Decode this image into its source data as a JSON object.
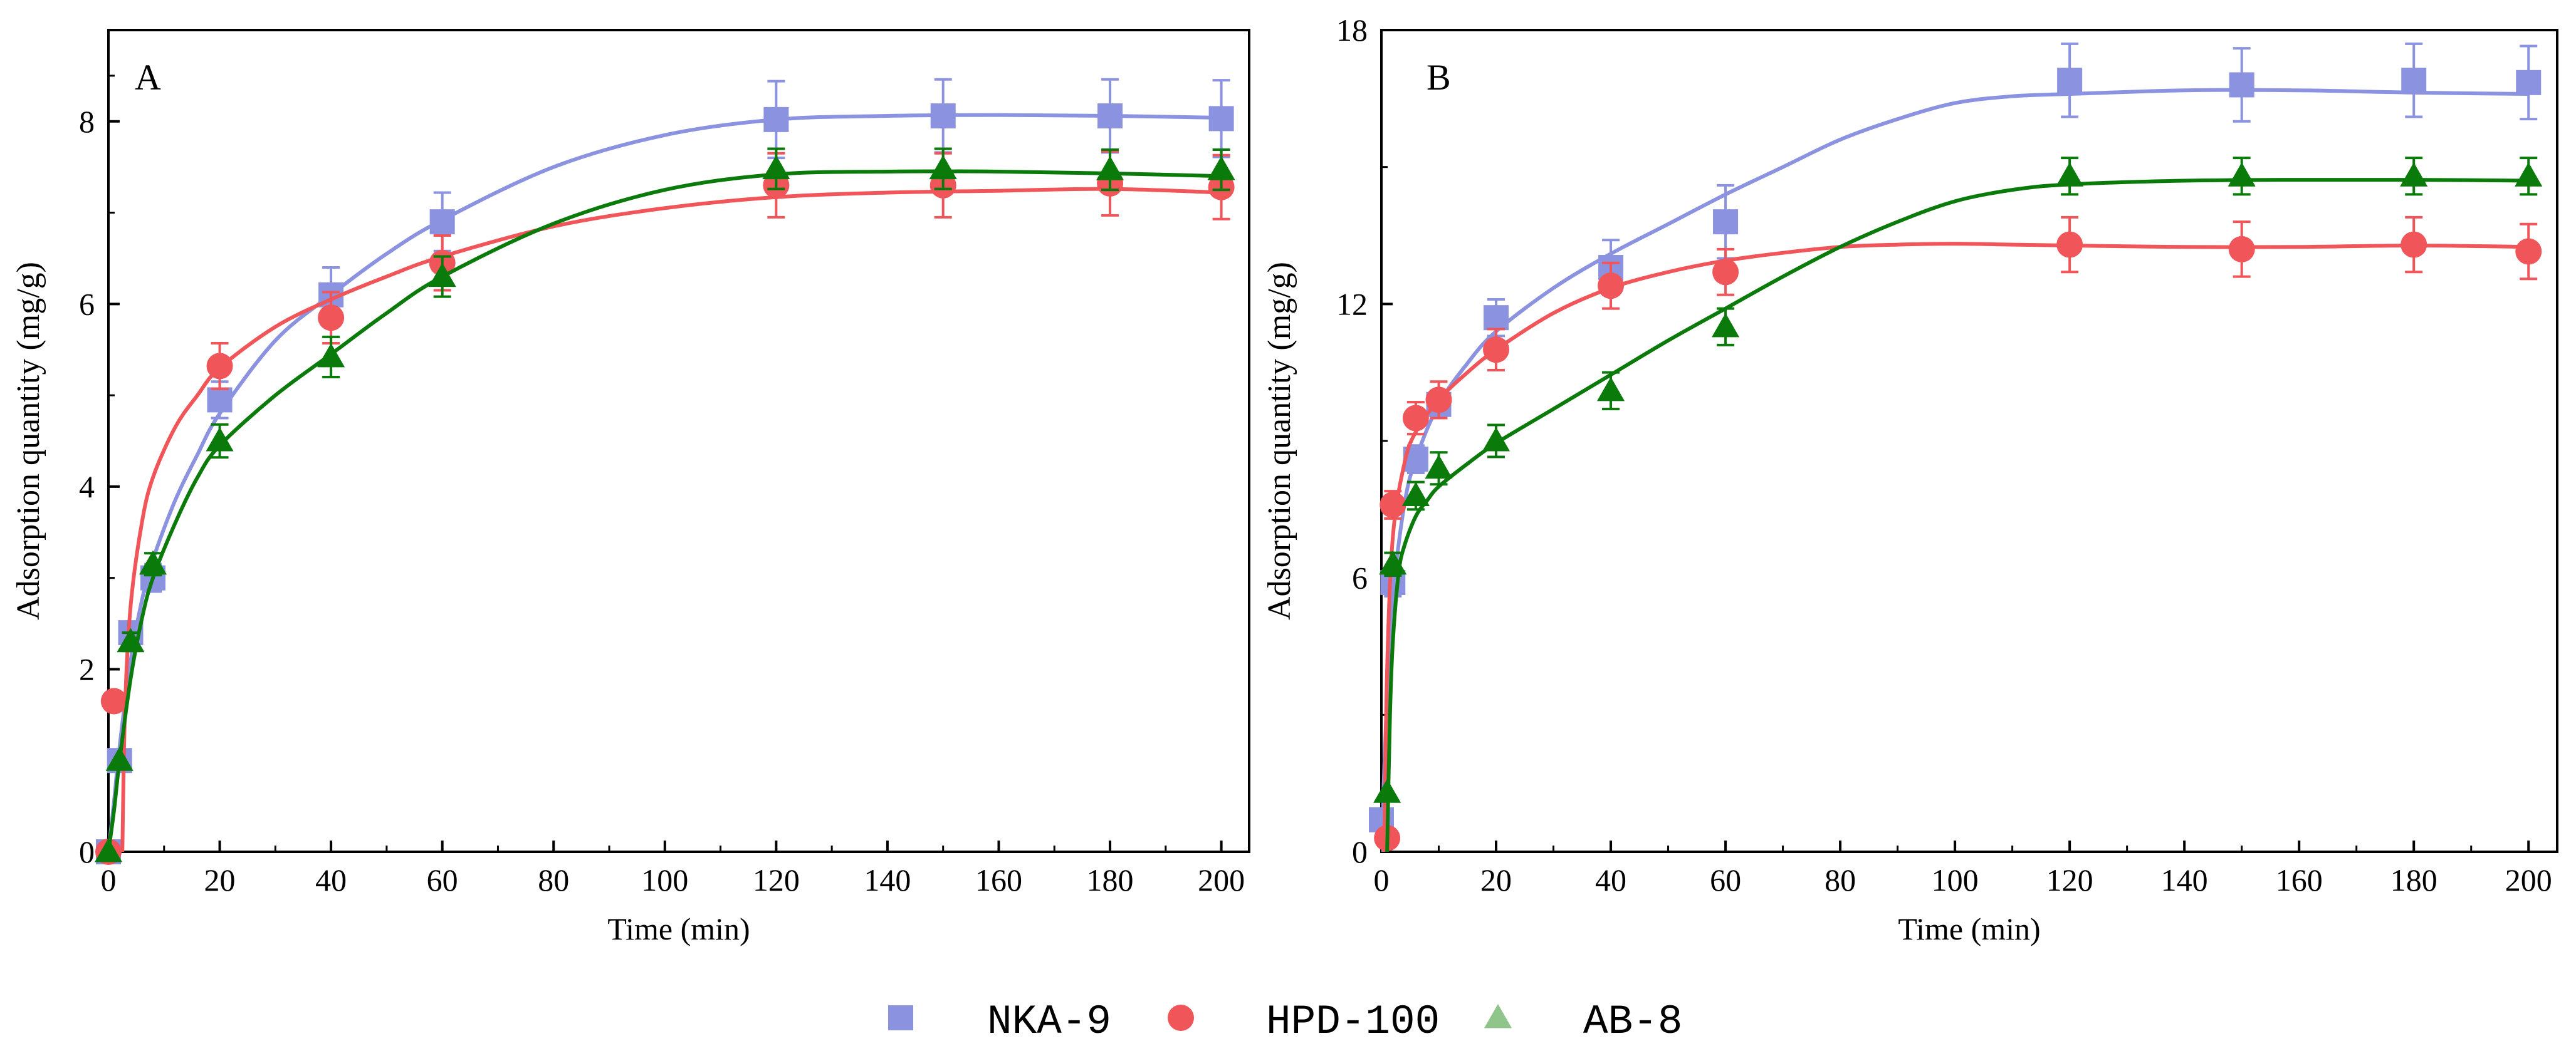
{
  "chart_data": [
    {
      "type": "scatter",
      "panel_label": "A",
      "xlabel": "Time (min)",
      "ylabel": "Adsorption quantity (mg/g)",
      "xlim": [
        0,
        205
      ],
      "ylim": [
        0,
        9
      ],
      "xticks": [
        0,
        20,
        40,
        60,
        80,
        100,
        120,
        140,
        160,
        180,
        200
      ],
      "yticks": [
        0,
        2,
        4,
        6,
        8
      ],
      "series": [
        {
          "name": "NKA-9",
          "color": "#8b93e0",
          "marker": "square",
          "x": [
            0,
            2,
            4,
            8,
            20,
            40,
            60,
            120,
            150,
            180,
            200
          ],
          "y": [
            0,
            1.0,
            2.4,
            3.0,
            4.95,
            6.1,
            6.9,
            8.02,
            8.06,
            8.06,
            8.03
          ],
          "err": [
            0,
            0,
            0.12,
            0.15,
            0.2,
            0.3,
            0.32,
            0.42,
            0.4,
            0.4,
            0.42
          ],
          "fit_x": [
            0,
            1,
            2,
            4,
            6,
            8,
            12,
            16,
            20,
            30,
            40,
            50,
            60,
            80,
            100,
            120,
            140,
            160,
            180,
            200
          ],
          "fit_y": [
            0,
            0.55,
            1.15,
            2.1,
            2.75,
            3.2,
            3.85,
            4.35,
            4.8,
            5.6,
            6.1,
            6.55,
            6.92,
            7.5,
            7.85,
            8.02,
            8.06,
            8.07,
            8.06,
            8.04
          ]
        },
        {
          "name": "HPD-100",
          "color": "#f0555a",
          "marker": "circle",
          "x": [
            0,
            1,
            20,
            40,
            60,
            120,
            150,
            180,
            200
          ],
          "y": [
            0,
            1.65,
            5.32,
            5.85,
            6.45,
            7.3,
            7.3,
            7.32,
            7.28
          ],
          "err": [
            0,
            0,
            0.25,
            0.28,
            0.3,
            0.35,
            0.35,
            0.35,
            0.35
          ],
          "fit_x": [
            2.5,
            3,
            4,
            6,
            8,
            12,
            16,
            20,
            30,
            40,
            50,
            60,
            80,
            100,
            120,
            140,
            160,
            180,
            200
          ],
          "fit_y": [
            0,
            1.6,
            2.7,
            3.6,
            4.1,
            4.65,
            5.0,
            5.3,
            5.75,
            6.05,
            6.3,
            6.52,
            6.85,
            7.05,
            7.17,
            7.22,
            7.24,
            7.26,
            7.22
          ]
        },
        {
          "name": "AB-8",
          "color": "#0a7a0a",
          "legend_color": "#8fc48a",
          "marker": "triangle",
          "x": [
            0,
            2,
            4,
            8,
            20,
            40,
            60,
            120,
            150,
            180,
            200
          ],
          "y": [
            0,
            1.0,
            2.3,
            3.15,
            4.5,
            5.42,
            6.3,
            7.48,
            7.48,
            7.47,
            7.47
          ],
          "err": [
            0,
            0,
            0.1,
            0.12,
            0.18,
            0.22,
            0.22,
            0.22,
            0.22,
            0.22,
            0.22
          ],
          "fit_x": [
            0,
            1,
            2,
            4,
            6,
            8,
            12,
            16,
            20,
            30,
            40,
            50,
            60,
            80,
            100,
            120,
            140,
            160,
            180,
            200
          ],
          "fit_y": [
            0,
            0.45,
            1.0,
            1.9,
            2.55,
            3.0,
            3.6,
            4.1,
            4.45,
            5.0,
            5.45,
            5.9,
            6.3,
            6.88,
            7.25,
            7.42,
            7.45,
            7.45,
            7.43,
            7.4
          ]
        }
      ]
    },
    {
      "type": "scatter",
      "panel_label": "B",
      "xlabel": "Time (min)",
      "ylabel": "Adsorption quantity (mg/g)",
      "xlim": [
        0,
        205
      ],
      "ylim": [
        0,
        18
      ],
      "xticks": [
        0,
        20,
        40,
        60,
        80,
        100,
        120,
        140,
        160,
        180,
        200
      ],
      "yticks": [
        0,
        6,
        12,
        18
      ],
      "series": [
        {
          "name": "NKA-9",
          "color": "#8b93e0",
          "marker": "square",
          "x": [
            0,
            2,
            6,
            10,
            20,
            40,
            60,
            120,
            150,
            180,
            200
          ],
          "y": [
            0.7,
            5.9,
            8.6,
            9.8,
            11.7,
            12.8,
            13.8,
            16.9,
            16.8,
            16.9,
            16.85
          ],
          "err": [
            0,
            0.3,
            0.3,
            0.3,
            0.4,
            0.6,
            0.8,
            0.8,
            0.8,
            0.8,
            0.8
          ],
          "fit_x": [
            0,
            1,
            2,
            4,
            6,
            10,
            15,
            20,
            30,
            40,
            50,
            60,
            70,
            80,
            90,
            100,
            110,
            120,
            140,
            160,
            180,
            200
          ],
          "fit_y": [
            0,
            3.5,
            5.6,
            7.6,
            8.6,
            9.8,
            10.7,
            11.4,
            12.35,
            13.1,
            13.75,
            14.4,
            15.0,
            15.6,
            16.05,
            16.4,
            16.55,
            16.6,
            16.68,
            16.68,
            16.63,
            16.6
          ]
        },
        {
          "name": "HPD-100",
          "color": "#f0555a",
          "marker": "circle",
          "x": [
            1,
            2,
            6,
            10,
            20,
            40,
            60,
            120,
            150,
            180,
            200
          ],
          "y": [
            0.3,
            7.6,
            9.5,
            9.9,
            11.0,
            12.4,
            12.7,
            13.3,
            13.2,
            13.3,
            13.15
          ],
          "err": [
            0,
            0.3,
            0.35,
            0.4,
            0.45,
            0.5,
            0.5,
            0.6,
            0.6,
            0.6,
            0.6
          ],
          "fit_x": [
            0.5,
            1,
            2,
            4,
            6,
            10,
            15,
            20,
            30,
            40,
            50,
            60,
            70,
            80,
            90,
            100,
            110,
            120,
            140,
            160,
            180,
            200
          ],
          "fit_y": [
            0,
            4.0,
            6.9,
            8.5,
            9.2,
            9.9,
            10.5,
            11.0,
            11.8,
            12.35,
            12.7,
            12.95,
            13.12,
            13.25,
            13.3,
            13.32,
            13.3,
            13.28,
            13.25,
            13.25,
            13.28,
            13.25
          ]
        },
        {
          "name": "AB-8",
          "color": "#0a7a0a",
          "legend_color": "#8fc48a",
          "marker": "triangle",
          "x": [
            1,
            2,
            6,
            10,
            20,
            40,
            60,
            120,
            150,
            180,
            200
          ],
          "y": [
            1.3,
            6.3,
            7.8,
            8.4,
            9.0,
            10.1,
            11.5,
            14.8,
            14.8,
            14.8,
            14.8
          ],
          "err": [
            0,
            0.25,
            0.3,
            0.35,
            0.35,
            0.4,
            0.4,
            0.4,
            0.4,
            0.4,
            0.4
          ],
          "fit_x": [
            1,
            1.5,
            2,
            3,
            4,
            6,
            8,
            10,
            15,
            20,
            30,
            40,
            50,
            60,
            70,
            80,
            90,
            100,
            110,
            120,
            140,
            160,
            180,
            200
          ],
          "fit_y": [
            0,
            3.0,
            4.6,
            6.1,
            6.7,
            7.35,
            7.7,
            8.0,
            8.5,
            8.95,
            9.7,
            10.45,
            11.2,
            11.9,
            12.6,
            13.25,
            13.8,
            14.25,
            14.5,
            14.62,
            14.7,
            14.72,
            14.72,
            14.7
          ]
        }
      ]
    }
  ],
  "legend": [
    {
      "label": "NKA-9",
      "marker": "square",
      "color": "#8b93e0"
    },
    {
      "label": "HPD-100",
      "marker": "circle",
      "color": "#f0555a"
    },
    {
      "label": "AB-8",
      "marker": "triangle",
      "color": "#8fc48a"
    }
  ]
}
